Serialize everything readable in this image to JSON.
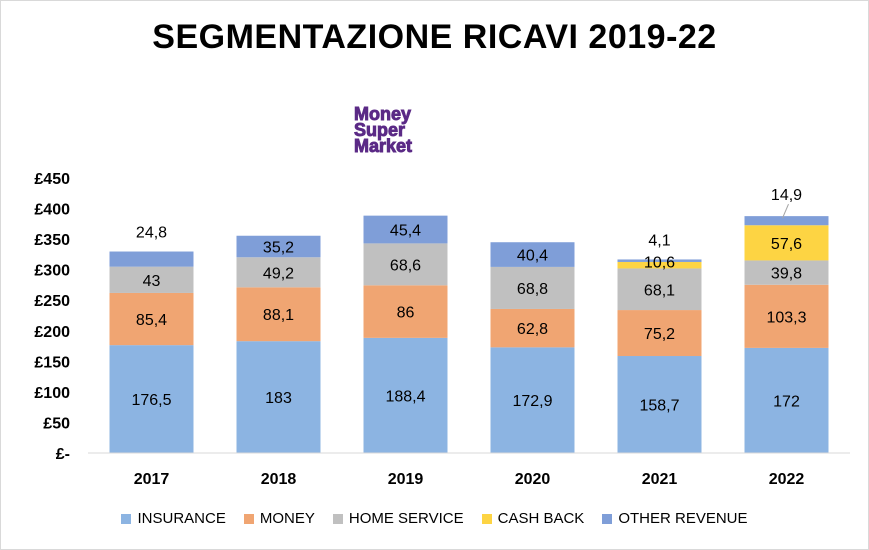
{
  "chart_data": {
    "type": "bar",
    "stacked": true,
    "title": "SEGMENTAZIONE RICAVI 2019-22",
    "logo_text": [
      "Money",
      "Super",
      "Market"
    ],
    "categories": [
      "2017",
      "2018",
      "2019",
      "2020",
      "2021",
      "2022"
    ],
    "ylim": [
      0,
      450
    ],
    "yticks": [
      {
        "value": 0,
        "label": "£-"
      },
      {
        "value": 50,
        "label": "£50"
      },
      {
        "value": 100,
        "label": "£100"
      },
      {
        "value": 150,
        "label": "£150"
      },
      {
        "value": 200,
        "label": "£200"
      },
      {
        "value": 250,
        "label": "£250"
      },
      {
        "value": 300,
        "label": "£300"
      },
      {
        "value": 350,
        "label": "£350"
      },
      {
        "value": 400,
        "label": "£400"
      },
      {
        "value": 450,
        "label": "£450"
      }
    ],
    "grid": false,
    "legend_position": "bottom",
    "series": [
      {
        "name": "INSURANCE",
        "color": "#8cb4e2",
        "values": [
          176.5,
          183,
          188.4,
          172.9,
          158.7,
          172
        ],
        "labels": [
          "176,5",
          "183",
          "188,4",
          "172,9",
          "158,7",
          "172"
        ]
      },
      {
        "name": "MONEY",
        "color": "#f0a572",
        "values": [
          85.4,
          88.1,
          86,
          62.8,
          75.2,
          103.3
        ],
        "labels": [
          "85,4",
          "88,1",
          "86",
          "62,8",
          "75,2",
          "103,3"
        ]
      },
      {
        "name": "HOME SERVICE",
        "color": "#c0c0c0",
        "values": [
          43,
          49.2,
          68.6,
          68.8,
          68.1,
          39.8
        ],
        "labels": [
          "43",
          "49,2",
          "68,6",
          "68,8",
          "68,1",
          "39,8"
        ]
      },
      {
        "name": "CASH BACK",
        "color": "#fdd443",
        "values": [
          0,
          0,
          0,
          0,
          10.6,
          57.6
        ],
        "labels": [
          "",
          "",
          "",
          "",
          "10,6",
          "57,6"
        ]
      },
      {
        "name": "OTHER REVENUE",
        "color": "#7f9ed8",
        "values": [
          24.8,
          35.2,
          45.4,
          40.4,
          4.1,
          14.9
        ],
        "labels": [
          "24,8",
          "35,2",
          "45,4",
          "40,4",
          "4,1",
          "14,9"
        ]
      }
    ]
  }
}
